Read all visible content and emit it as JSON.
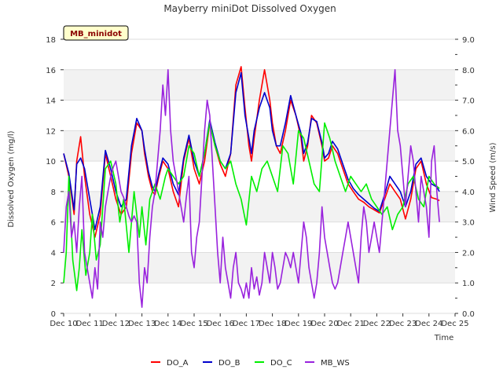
{
  "chart_data": {
    "type": "line",
    "title": "Mayberry miniDot Dissolved Oxygen",
    "xlabel": "Time",
    "ylabel": "Dissolved Oxygen (mg/l)",
    "y2label": "Wind Speed (m/s)",
    "annotation": "MB_minidot",
    "xlim": [
      10,
      25
    ],
    "ylim": [
      0,
      18
    ],
    "y2lim": [
      0,
      9
    ],
    "x_ticks": [
      10,
      11,
      12,
      13,
      14,
      15,
      16,
      17,
      18,
      19,
      20,
      21,
      22,
      23,
      24,
      25
    ],
    "x_tick_labels": [
      "Dec 10",
      "Dec 11",
      "Dec 12",
      "Dec 13",
      "Dec 14",
      "Dec 15",
      "Dec 16",
      "Dec 17",
      "Dec 18",
      "Dec 19",
      "Dec 20",
      "Dec 21",
      "Dec 22",
      "Dec 23",
      "Dec 24",
      "Dec 25"
    ],
    "y_ticks": [
      0,
      2,
      4,
      6,
      8,
      10,
      12,
      14,
      16,
      18
    ],
    "y_tick_labels": [
      "0",
      "2",
      "4",
      "6",
      "8",
      "10",
      "12",
      "14",
      "16",
      "18"
    ],
    "y2_ticks": [
      0,
      1,
      2,
      3,
      4,
      5,
      6,
      7,
      8,
      9
    ],
    "y2_tick_labels": [
      "0.0",
      "1.0",
      "2.0",
      "3.0",
      "4.0",
      "5.0",
      "6.0",
      "7.0",
      "8.0",
      "9.0"
    ],
    "legend_position": "bottom",
    "series": [
      {
        "name": "DO_A",
        "color": "#ff0000",
        "axis": "left",
        "x": [
          10.0,
          10.2,
          10.4,
          10.5,
          10.65,
          10.8,
          11.0,
          11.2,
          11.4,
          11.6,
          11.8,
          12.0,
          12.2,
          12.4,
          12.6,
          12.8,
          13.0,
          13.1,
          13.25,
          13.4,
          13.5,
          13.65,
          13.8,
          14.0,
          14.2,
          14.4,
          14.6,
          14.8,
          15.0,
          15.2,
          15.4,
          15.6,
          15.8,
          16.0,
          16.2,
          16.4,
          16.6,
          16.8,
          16.95,
          17.1,
          17.2,
          17.3,
          17.5,
          17.7,
          17.9,
          18.0,
          18.15,
          18.3,
          18.5,
          18.7,
          18.9,
          19.1,
          19.2,
          19.35,
          19.5,
          19.7,
          19.9,
          20.0,
          20.15,
          20.3,
          20.5,
          20.7,
          20.9,
          21.1,
          21.3,
          21.5,
          21.7,
          21.9,
          22.1,
          22.3,
          22.5,
          22.7,
          22.9,
          23.1,
          23.3,
          23.5,
          23.7,
          23.9,
          24.1,
          24.3,
          24.4
        ],
        "y": [
          10.5,
          9.0,
          6.5,
          10.0,
          11.6,
          9.0,
          6.5,
          5.0,
          6.5,
          10.5,
          9.0,
          7.5,
          6.5,
          7.0,
          10.5,
          12.5,
          12.0,
          10.5,
          9.0,
          8.0,
          7.8,
          9.0,
          10.0,
          9.5,
          8.0,
          7.0,
          10.0,
          11.5,
          9.5,
          8.5,
          10.0,
          12.5,
          11.0,
          9.8,
          9.0,
          10.5,
          15.0,
          16.2,
          13.5,
          11.0,
          10.0,
          11.5,
          14.0,
          16.0,
          14.0,
          12.5,
          11.0,
          10.5,
          12.0,
          14.0,
          13.0,
          11.5,
          10.0,
          11.0,
          13.0,
          12.5,
          11.0,
          10.0,
          10.2,
          11.0,
          10.5,
          9.5,
          8.5,
          8.0,
          7.5,
          7.3,
          7.0,
          6.8,
          6.6,
          7.5,
          8.5,
          8.0,
          7.5,
          6.2,
          7.5,
          9.5,
          10.0,
          8.5,
          7.6,
          7.5,
          7.4
        ]
      },
      {
        "name": "DO_B",
        "color": "#0000cc",
        "axis": "left",
        "x": [
          10.0,
          10.2,
          10.4,
          10.5,
          10.65,
          10.8,
          11.0,
          11.2,
          11.4,
          11.6,
          11.8,
          12.0,
          12.2,
          12.4,
          12.6,
          12.8,
          13.0,
          13.1,
          13.25,
          13.4,
          13.5,
          13.65,
          13.8,
          14.0,
          14.2,
          14.4,
          14.6,
          14.8,
          15.0,
          15.2,
          15.4,
          15.6,
          15.8,
          16.0,
          16.2,
          16.4,
          16.6,
          16.8,
          16.95,
          17.1,
          17.2,
          17.3,
          17.5,
          17.7,
          17.9,
          18.0,
          18.15,
          18.3,
          18.5,
          18.7,
          18.9,
          19.1,
          19.2,
          19.35,
          19.5,
          19.7,
          19.9,
          20.0,
          20.15,
          20.3,
          20.5,
          20.7,
          20.9,
          21.1,
          21.3,
          21.5,
          21.7,
          21.9,
          22.1,
          22.3,
          22.5,
          22.7,
          22.9,
          23.1,
          23.3,
          23.5,
          23.7,
          23.9,
          24.1,
          24.3,
          24.4
        ],
        "y": [
          10.5,
          9.2,
          6.8,
          9.8,
          10.2,
          9.5,
          7.5,
          5.5,
          7.0,
          10.7,
          9.5,
          8.0,
          7.0,
          7.5,
          11.0,
          12.8,
          12.0,
          10.8,
          9.3,
          8.3,
          8.0,
          9.2,
          10.2,
          9.8,
          8.5,
          7.8,
          10.2,
          11.7,
          10.0,
          9.0,
          10.5,
          12.7,
          11.2,
          10.0,
          9.5,
          10.5,
          14.5,
          15.8,
          13.0,
          11.5,
          10.5,
          12.0,
          13.5,
          14.5,
          13.5,
          12.0,
          11.0,
          11.0,
          12.5,
          14.3,
          13.0,
          11.8,
          10.5,
          11.2,
          12.8,
          12.6,
          11.2,
          10.2,
          10.5,
          11.3,
          10.8,
          9.8,
          8.8,
          8.2,
          7.8,
          7.5,
          7.2,
          6.9,
          6.7,
          7.8,
          9.0,
          8.5,
          8.0,
          7.0,
          8.0,
          9.8,
          10.2,
          9.0,
          8.5,
          8.3,
          8.0
        ]
      },
      {
        "name": "DO_C",
        "color": "#00ee00",
        "axis": "left",
        "x": [
          10.0,
          10.1,
          10.2,
          10.35,
          10.5,
          10.6,
          10.7,
          10.85,
          11.0,
          11.1,
          11.25,
          11.4,
          11.6,
          11.8,
          12.0,
          12.15,
          12.3,
          12.5,
          12.7,
          12.9,
          13.0,
          13.15,
          13.3,
          13.5,
          13.7,
          13.9,
          14.0,
          14.2,
          14.4,
          14.6,
          14.8,
          15.0,
          15.2,
          15.4,
          15.6,
          15.8,
          16.0,
          16.2,
          16.4,
          16.6,
          16.8,
          17.0,
          17.2,
          17.4,
          17.6,
          17.8,
          18.0,
          18.2,
          18.4,
          18.6,
          18.8,
          19.0,
          19.2,
          19.4,
          19.6,
          19.8,
          20.0,
          20.2,
          20.4,
          20.6,
          20.8,
          21.0,
          21.2,
          21.4,
          21.6,
          21.8,
          22.0,
          22.2,
          22.4,
          22.6,
          22.8,
          23.0,
          23.2,
          23.4,
          23.6,
          23.8,
          24.0,
          24.2,
          24.4
        ],
        "y": [
          2.0,
          4.0,
          9.0,
          3.5,
          1.5,
          3.0,
          5.5,
          2.5,
          4.0,
          6.5,
          3.5,
          4.5,
          9.5,
          10.0,
          8.5,
          6.0,
          7.5,
          4.0,
          8.0,
          5.0,
          7.0,
          4.5,
          7.5,
          8.5,
          7.5,
          9.0,
          9.5,
          9.0,
          8.5,
          9.0,
          11.0,
          10.5,
          9.0,
          10.5,
          12.5,
          11.0,
          10.0,
          9.5,
          10.0,
          8.5,
          7.5,
          5.8,
          9.0,
          8.0,
          9.5,
          10.0,
          9.0,
          8.0,
          11.0,
          10.5,
          8.5,
          12.0,
          11.5,
          10.0,
          8.5,
          8.0,
          12.5,
          11.5,
          10.0,
          9.0,
          8.0,
          9.0,
          8.5,
          8.0,
          8.5,
          7.5,
          7.0,
          6.5,
          7.0,
          5.5,
          6.5,
          7.0,
          8.5,
          9.0,
          7.5,
          7.0,
          9.0,
          8.5,
          8.2
        ]
      },
      {
        "name": "MB_WS",
        "color": "#9922dd",
        "axis": "right",
        "x": [
          10.0,
          10.1,
          10.2,
          10.3,
          10.4,
          10.5,
          10.6,
          10.7,
          10.8,
          10.9,
          11.0,
          11.1,
          11.2,
          11.3,
          11.4,
          11.5,
          11.6,
          11.7,
          11.8,
          11.9,
          12.0,
          12.1,
          12.2,
          12.3,
          12.4,
          12.5,
          12.6,
          12.7,
          12.8,
          12.9,
          13.0,
          13.1,
          13.2,
          13.3,
          13.4,
          13.5,
          13.6,
          13.7,
          13.8,
          13.9,
          14.0,
          14.1,
          14.2,
          14.3,
          14.4,
          14.5,
          14.6,
          14.7,
          14.8,
          14.9,
          15.0,
          15.1,
          15.2,
          15.3,
          15.4,
          15.5,
          15.6,
          15.7,
          15.8,
          15.9,
          16.0,
          16.1,
          16.2,
          16.3,
          16.4,
          16.5,
          16.6,
          16.7,
          16.8,
          16.9,
          17.0,
          17.1,
          17.2,
          17.3,
          17.4,
          17.5,
          17.6,
          17.7,
          17.8,
          17.9,
          18.0,
          18.1,
          18.2,
          18.3,
          18.4,
          18.5,
          18.6,
          18.7,
          18.8,
          18.9,
          19.0,
          19.1,
          19.2,
          19.3,
          19.4,
          19.5,
          19.6,
          19.7,
          19.8,
          19.9,
          20.0,
          20.1,
          20.2,
          20.3,
          20.4,
          20.5,
          20.6,
          20.7,
          20.8,
          20.9,
          21.0,
          21.1,
          21.2,
          21.3,
          21.4,
          21.5,
          21.6,
          21.7,
          21.8,
          21.9,
          22.0,
          22.1,
          22.2,
          22.3,
          22.4,
          22.5,
          22.6,
          22.7,
          22.8,
          22.9,
          23.0,
          23.1,
          23.2,
          23.3,
          23.4,
          23.5,
          23.6,
          23.7,
          23.8,
          23.9,
          24.0,
          24.1,
          24.2,
          24.3,
          24.4
        ],
        "y": [
          2.0,
          3.5,
          4.0,
          2.5,
          3.0,
          2.0,
          3.5,
          4.5,
          2.0,
          1.5,
          1.0,
          0.5,
          1.5,
          0.8,
          3.0,
          2.5,
          3.5,
          4.0,
          4.5,
          4.8,
          5.0,
          4.5,
          4.0,
          3.8,
          3.5,
          3.2,
          3.0,
          3.2,
          3.0,
          1.0,
          0.2,
          1.5,
          1.0,
          2.5,
          3.5,
          4.0,
          5.0,
          6.0,
          7.5,
          6.5,
          8.0,
          6.0,
          5.0,
          4.5,
          4.0,
          3.5,
          3.0,
          3.8,
          4.5,
          2.0,
          1.5,
          2.5,
          3.0,
          4.5,
          6.0,
          7.0,
          6.5,
          5.0,
          3.5,
          2.0,
          1.0,
          2.5,
          1.5,
          1.0,
          0.5,
          1.5,
          2.0,
          1.0,
          0.8,
          0.5,
          1.0,
          0.5,
          1.5,
          0.8,
          1.2,
          0.6,
          1.0,
          2.0,
          1.5,
          1.0,
          2.0,
          1.5,
          0.8,
          1.0,
          1.5,
          2.0,
          1.8,
          1.5,
          2.0,
          1.5,
          1.0,
          2.0,
          3.0,
          2.5,
          1.5,
          1.0,
          0.5,
          1.0,
          2.0,
          3.5,
          2.5,
          2.0,
          1.5,
          1.0,
          0.8,
          1.0,
          1.5,
          2.0,
          2.5,
          3.0,
          2.5,
          2.0,
          1.5,
          1.0,
          2.5,
          3.5,
          3.0,
          2.0,
          2.5,
          3.0,
          2.5,
          2.0,
          3.0,
          4.0,
          5.0,
          6.0,
          7.0,
          8.0,
          6.0,
          5.5,
          4.5,
          3.5,
          4.5,
          5.5,
          5.0,
          4.0,
          3.0,
          4.5,
          4.0,
          3.5,
          2.5,
          5.0,
          5.5,
          4.0,
          3.0
        ]
      }
    ]
  }
}
